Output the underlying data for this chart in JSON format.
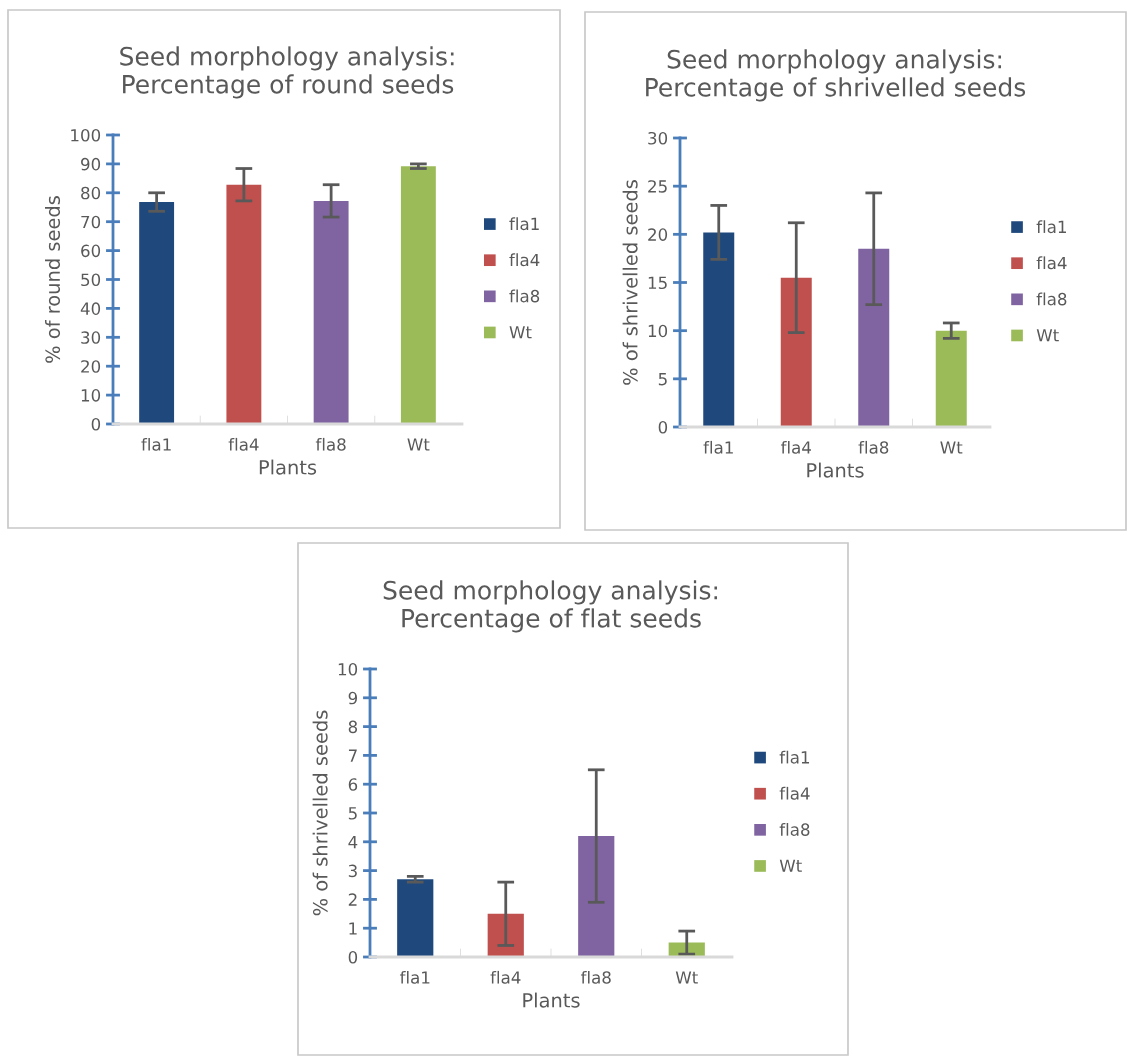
{
  "chart_data": [
    {
      "type": "bar",
      "title": "Seed morphology analysis:\nPercentage of round seeds",
      "xlabel": "Plants",
      "ylabel": "% of round seeds",
      "categories": [
        "fla1",
        "fla4",
        "fla8",
        "Wt"
      ],
      "series": [
        {
          "name": "fla1",
          "color": "#1f497d",
          "values": [
            76.8,
            null,
            null,
            null
          ],
          "errors": [
            3.2,
            null,
            null,
            null
          ]
        },
        {
          "name": "fla4",
          "color": "#c0504d",
          "values": [
            null,
            82.8,
            null,
            null
          ],
          "errors": [
            null,
            5.6,
            null,
            null
          ]
        },
        {
          "name": "fla8",
          "color": "#8064a2",
          "values": [
            null,
            null,
            77.2,
            null
          ],
          "errors": [
            null,
            null,
            5.6,
            null
          ]
        },
        {
          "name": "Wt",
          "color": "#9bbb59",
          "values": [
            null,
            null,
            null,
            89.2
          ],
          "errors": [
            null,
            null,
            null,
            0.8
          ]
        }
      ],
      "ylim": [
        0,
        100
      ],
      "yticks": [
        0,
        10,
        20,
        30,
        40,
        50,
        60,
        70,
        80,
        90,
        100
      ],
      "legend": "right"
    },
    {
      "type": "bar",
      "title": "Seed morphology analysis:\nPercentage of shrivelled seeds",
      "xlabel": "Plants",
      "ylabel": "% of shrivelled seeds",
      "categories": [
        "fla1",
        "fla4",
        "fla8",
        "Wt"
      ],
      "series": [
        {
          "name": "fla1",
          "color": "#1f497d",
          "values": [
            20.2,
            null,
            null,
            null
          ],
          "errors": [
            2.8,
            null,
            null,
            null
          ]
        },
        {
          "name": "fla4",
          "color": "#c0504d",
          "values": [
            null,
            15.5,
            null,
            null
          ],
          "errors": [
            null,
            5.7,
            null,
            null
          ]
        },
        {
          "name": "fla8",
          "color": "#8064a2",
          "values": [
            null,
            null,
            18.5,
            null
          ],
          "errors": [
            null,
            null,
            5.8,
            null
          ]
        },
        {
          "name": "Wt",
          "color": "#9bbb59",
          "values": [
            null,
            null,
            null,
            10.0
          ],
          "errors": [
            null,
            null,
            null,
            0.8
          ]
        }
      ],
      "ylim": [
        0,
        30
      ],
      "yticks": [
        0,
        5,
        10,
        15,
        20,
        25,
        30
      ],
      "legend": "right"
    },
    {
      "type": "bar",
      "title": "Seed morphology analysis:\nPercentage of flat seeds",
      "xlabel": "Plants",
      "ylabel": "% of shrivelled seeds",
      "categories": [
        "fla1",
        "fla4",
        "fla8",
        "Wt"
      ],
      "series": [
        {
          "name": "fla1",
          "color": "#1f497d",
          "values": [
            2.7,
            null,
            null,
            null
          ],
          "errors": [
            0.1,
            null,
            null,
            null
          ]
        },
        {
          "name": "fla4",
          "color": "#c0504d",
          "values": [
            null,
            1.5,
            null,
            null
          ],
          "errors": [
            null,
            1.1,
            null,
            null
          ]
        },
        {
          "name": "fla8",
          "color": "#8064a2",
          "values": [
            null,
            null,
            4.2,
            null
          ],
          "errors": [
            null,
            null,
            2.3,
            null
          ]
        },
        {
          "name": "Wt",
          "color": "#9bbb59",
          "values": [
            null,
            null,
            null,
            0.5
          ],
          "errors": [
            null,
            null,
            null,
            0.4
          ]
        }
      ],
      "ylim": [
        0,
        10
      ],
      "yticks": [
        0,
        1,
        2,
        3,
        4,
        5,
        6,
        7,
        8,
        9,
        10
      ],
      "legend": "right"
    }
  ]
}
